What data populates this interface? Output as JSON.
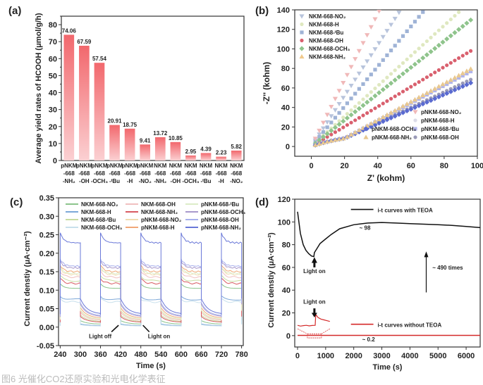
{
  "caption": "图6 光催化CO2还原实验和光电化学表征",
  "chart_data": [
    {
      "panel": "(a)",
      "type": "bar",
      "title": "",
      "xlabel": "",
      "ylabel": "Average yield rates of HCOOH (μmol/g/h)",
      "ylim": [
        0,
        85
      ],
      "yticks": [
        0,
        10,
        20,
        30,
        40,
        50,
        60,
        70,
        80
      ],
      "categories": [
        [
          "pNKM",
          "-668",
          "-NH₂"
        ],
        [
          "pNKM",
          "-668",
          "-OH"
        ],
        [
          "pNKM",
          "-668",
          "-OCH₃"
        ],
        [
          "pNKM",
          "-668",
          "-ᵗBu"
        ],
        [
          "pNKM",
          "-668",
          "-H"
        ],
        [
          "pNKM",
          "-668",
          "-NO₂"
        ],
        [
          "NKM",
          "-668",
          "-NH₂"
        ],
        [
          "NKM",
          "-668",
          "-OH"
        ],
        [
          "NKM",
          "-668",
          "-OCH₃"
        ],
        [
          "NKM",
          "-668",
          "-ᵗBu"
        ],
        [
          "NKM",
          "-668",
          "-H"
        ],
        [
          "NKM",
          "-668",
          "-NO₂"
        ]
      ],
      "values": [
        74.06,
        67.59,
        57.54,
        20.91,
        18.75,
        9.41,
        13.72,
        10.85,
        2.95,
        4.39,
        2.23,
        5.82
      ],
      "value_labels": [
        "74.06",
        "67.59",
        "57.54",
        "20.91",
        "18.75",
        "9.41",
        "13.72",
        "10.85",
        "2.95",
        "4.39",
        "2.23",
        "5.82"
      ],
      "bar_color": "#f2686d"
    },
    {
      "panel": "(b)",
      "type": "scatter",
      "xlabel": "Z' (kohm)",
      "ylabel": "-Z'' (kohm)",
      "xlim": [
        -10,
        100
      ],
      "ylim": [
        -10,
        140
      ],
      "xticks": [
        0,
        20,
        40,
        60,
        80,
        100
      ],
      "yticks": [
        0,
        20,
        40,
        60,
        80,
        100,
        120,
        140
      ],
      "legend_top_left": [
        {
          "name": "NKM-668-NO₂",
          "color": "#b8c4dc",
          "marker": "triangle-down",
          "slope": 2.6
        },
        {
          "name": "NKM-668-H",
          "color": "#dfe8c0",
          "marker": "circle",
          "slope": 1.55
        },
        {
          "name": "NKM-668-ᵗBu",
          "color": "#9fb3d6",
          "marker": "square",
          "slope": 2.05
        },
        {
          "name": "NKM-668-OH",
          "color": "#d9606e",
          "marker": "circle",
          "slope": 1.02
        },
        {
          "name": "NKM-668-OCH₃",
          "color": "#8fc48c",
          "marker": "diamond",
          "slope": 1.35
        },
        {
          "name": "NKM-668-NH₂",
          "color": "#f0c98c",
          "marker": "triangle",
          "slope": 0.85
        }
      ],
      "legend_bottom_right": [
        {
          "name": "pNKM-668-NO₂",
          "color": "#f0b8b8",
          "marker": "triangle-down",
          "slope": 3.4
        },
        {
          "name": "pNKM-668-H",
          "color": "#dcdce8",
          "marker": "circle",
          "slope": 0.72
        },
        {
          "name": "pNKM-668-ᵗBu",
          "color": "#b0b4ec",
          "marker": "square",
          "slope": 0.82
        },
        {
          "name": "pNKM-668-OH",
          "color": "#9a9ab8",
          "marker": "circle",
          "slope": 0.72
        },
        {
          "name": "pNKM-668-OCH₃",
          "color": "#5a6ad0",
          "marker": "diamond",
          "slope": 0.68
        },
        {
          "name": "pNKM-668-NH₂",
          "color": "#e8c890",
          "marker": "triangle",
          "slope": 0.85
        }
      ]
    },
    {
      "panel": "(c)",
      "type": "line",
      "xlabel": "Time (s)",
      "ylabel": "Current denstiy (μA·cm⁻²)",
      "xlim": [
        235,
        785
      ],
      "ylim": [
        -0.05,
        0.35
      ],
      "xticks": [
        240,
        300,
        360,
        420,
        480,
        540,
        600,
        660,
        720,
        780
      ],
      "yticks": [
        -0.05,
        0.0,
        0.05,
        0.1,
        0.15,
        0.2,
        0.25,
        0.3,
        0.35
      ],
      "light_on_intervals": [
        [
          240,
          300
        ],
        [
          360,
          420
        ],
        [
          480,
          540
        ],
        [
          600,
          660
        ],
        [
          720,
          780
        ]
      ],
      "annotations": [
        {
          "text": "Light off",
          "x": 420,
          "y": 0.005
        },
        {
          "text": "Light on",
          "x": 480,
          "y": 0.005
        }
      ],
      "series": [
        {
          "name": "NKM-668-NO₂",
          "color": "#8cc48c",
          "on": 0.105,
          "off": 0.008
        },
        {
          "name": "NKM-668-H",
          "color": "#7ca8d8",
          "on": 0.075,
          "off": 0.004
        },
        {
          "name": "NKM-668-ᵗBu",
          "color": "#c8dca0",
          "on": 0.125,
          "off": 0.015
        },
        {
          "name": "NKM-668-OCH₃",
          "color": "#c8e0ec",
          "on": 0.068,
          "off": 0.003
        },
        {
          "name": "NKM-668-OH",
          "color": "#f0c0c0",
          "on": 0.135,
          "off": 0.018
        },
        {
          "name": "NKM-668-NH₂",
          "color": "#d85a62",
          "on": 0.118,
          "off": 0.013
        },
        {
          "name": "pNKM-668-NO₂",
          "color": "#f0dcb0",
          "on": 0.142,
          "off": 0.02
        },
        {
          "name": "pNKM-668-H",
          "color": "#f0a878",
          "on": 0.15,
          "off": 0.024
        },
        {
          "name": "pNKM-668-ᵗBu",
          "color": "#dcecc8",
          "on": 0.145,
          "off": 0.021
        },
        {
          "name": "pNKM-668-OCH₃",
          "color": "#a898cc",
          "on": 0.16,
          "off": 0.028
        },
        {
          "name": "pNKM-668-OH",
          "color": "#a8b0ec",
          "on": 0.165,
          "off": 0.03
        },
        {
          "name": "pNKM-668-NH₂",
          "color": "#6a78d8",
          "on": 0.228,
          "off": 0.035
        }
      ]
    },
    {
      "panel": "(d)",
      "type": "line",
      "xlabel": "Time (s)",
      "ylabel": "Current denstiy (μA·cm⁻²)",
      "xlim": [
        -100,
        6500
      ],
      "ylim": [
        -10,
        120
      ],
      "xticks": [
        0,
        1000,
        2000,
        3000,
        4000,
        5000,
        6000
      ],
      "yticks": [
        0,
        20,
        40,
        60,
        80,
        100,
        120
      ],
      "annotations": [
        {
          "text": "~ 98",
          "x": 2200,
          "y": 93
        },
        {
          "text": "Light on",
          "x": 600,
          "y": 55
        },
        {
          "text": "~ 490 times",
          "x": 4800,
          "y": 58
        },
        {
          "text": "Light on",
          "x": 600,
          "y": 28
        },
        {
          "text": "~ 0.2",
          "x": 2300,
          "y": -5
        }
      ],
      "series": [
        {
          "name": "i-t curves with TEOA",
          "color": "#111111",
          "x": [
            0,
            100,
            200,
            300,
            400,
            500,
            580,
            600,
            700,
            800,
            1000,
            1200,
            1500,
            2000,
            2500,
            3000,
            3500,
            4000,
            4500,
            5000,
            5500,
            6000,
            6500
          ],
          "y": [
            109,
            90,
            80,
            75,
            72,
            70,
            69.5,
            73,
            77,
            81,
            85,
            89,
            94,
            97.5,
            99,
            99.5,
            99,
            98.5,
            98,
            97.5,
            97,
            96,
            95
          ]
        },
        {
          "name": "i-t curves without TEOA",
          "color": "#d42a2a",
          "x": [
            0,
            6500
          ],
          "y": [
            0.2,
            0.2
          ]
        }
      ],
      "inset_series": {
        "color": "#d42a2a",
        "x": [
          0,
          100,
          200,
          300,
          400,
          500,
          600,
          620,
          700,
          800,
          900,
          1000,
          1100
        ],
        "y": [
          8,
          7.5,
          7.8,
          8,
          7.6,
          7.9,
          8,
          15,
          13,
          12,
          11.5,
          11,
          10.5
        ]
      }
    }
  ]
}
